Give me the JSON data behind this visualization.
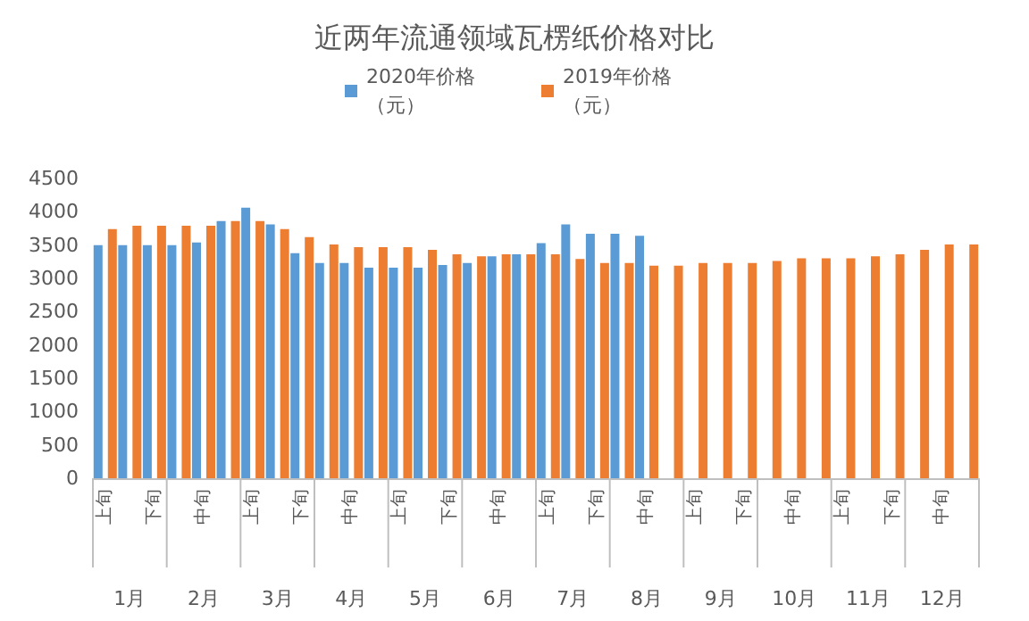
{
  "chart_data": {
    "type": "bar",
    "title": "近两年流通领域瓦楞纸价格对比",
    "categories": [
      "上旬",
      null,
      "下旬",
      null,
      "中旬",
      null,
      "上旬",
      null,
      "下旬",
      null,
      "中旬",
      null,
      "上旬",
      null,
      "下旬",
      null,
      "中旬",
      null,
      "上旬",
      null,
      "下旬",
      null,
      "中旬",
      null,
      "上旬",
      null,
      "下旬",
      null,
      "中旬",
      null,
      "上旬",
      null,
      "下旬",
      null,
      "中旬",
      null
    ],
    "annotations": [
      "1月",
      "2月",
      "3月",
      "4月",
      "5月",
      "6月",
      "7月",
      "8月",
      "9月",
      "10月",
      "11月",
      "12月"
    ],
    "series": [
      {
        "name": "2020年价格（元）",
        "color": "#5b9bd5",
        "values": [
          3500,
          3500,
          3500,
          3500,
          3540,
          3860,
          4060,
          3810,
          3380,
          3230,
          3230,
          3160,
          3160,
          3160,
          3200,
          3230,
          3330,
          3360,
          3530,
          3810,
          3670,
          3670,
          3640,
          null,
          null,
          null,
          null,
          null,
          null,
          null,
          null,
          null,
          null,
          null,
          null,
          null
        ]
      },
      {
        "name": "2019年价格（元）",
        "color": "#ed7d31",
        "values": [
          3740,
          3790,
          3790,
          3790,
          3790,
          3860,
          3860,
          3740,
          3620,
          3510,
          3470,
          3470,
          3470,
          3430,
          3360,
          3330,
          3360,
          3360,
          3360,
          3290,
          3230,
          3230,
          3190,
          3190,
          3230,
          3230,
          3230,
          3260,
          3300,
          3300,
          3300,
          3330,
          3360,
          3430,
          3510,
          3510
        ]
      }
    ],
    "ylim": [
      0,
      4500
    ],
    "yticks": [
      0,
      500,
      1000,
      1500,
      2000,
      2500,
      3000,
      3500,
      4000,
      4500
    ],
    "legend": "top"
  }
}
